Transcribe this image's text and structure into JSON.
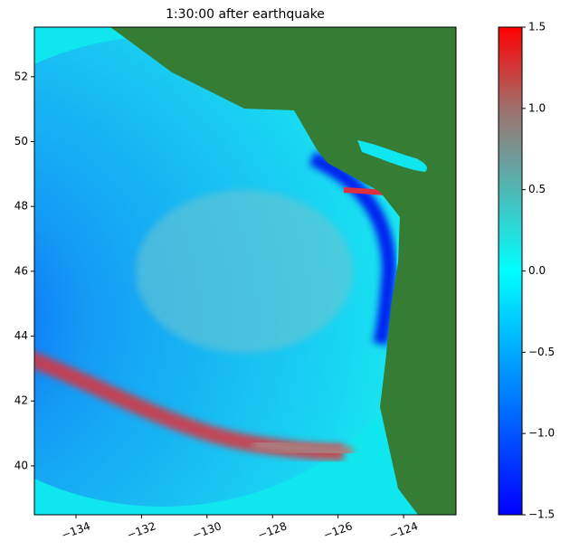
{
  "chart_data": {
    "type": "heatmap",
    "title": "1:30:00 after earthquake",
    "xlim": [
      -135.27,
      -122.4
    ],
    "ylim": [
      38.49,
      53.53
    ],
    "xticks": [
      {
        "value": -134,
        "label": "−134"
      },
      {
        "value": -132,
        "label": "−132"
      },
      {
        "value": -130,
        "label": "−130"
      },
      {
        "value": -128,
        "label": "−128"
      },
      {
        "value": -126,
        "label": "−126"
      },
      {
        "value": -124,
        "label": "−124"
      }
    ],
    "yticks": [
      40,
      42,
      44,
      46,
      48,
      50,
      52
    ],
    "colorbar": {
      "lim": [
        -1.5,
        1.5
      ],
      "ticks": [
        {
          "value": -1.5,
          "label": "−1.5"
        },
        {
          "value": -1,
          "label": "−1.0"
        },
        {
          "value": -0.5,
          "label": "−0.5"
        },
        {
          "value": 0,
          "label": "0.0"
        },
        {
          "value": 0.5,
          "label": "0.5"
        },
        {
          "value": 1,
          "label": "1.0"
        },
        {
          "value": 1.5,
          "label": "1.5"
        }
      ],
      "stops": [
        {
          "value": -1.5,
          "color": "#0000ff"
        },
        {
          "value": 0,
          "color": "#00ffff"
        },
        {
          "value": 1,
          "color": "#a0706c"
        },
        {
          "value": 1.5,
          "color": "#ff0000"
        }
      ]
    },
    "land_color": "#357d34"
  }
}
